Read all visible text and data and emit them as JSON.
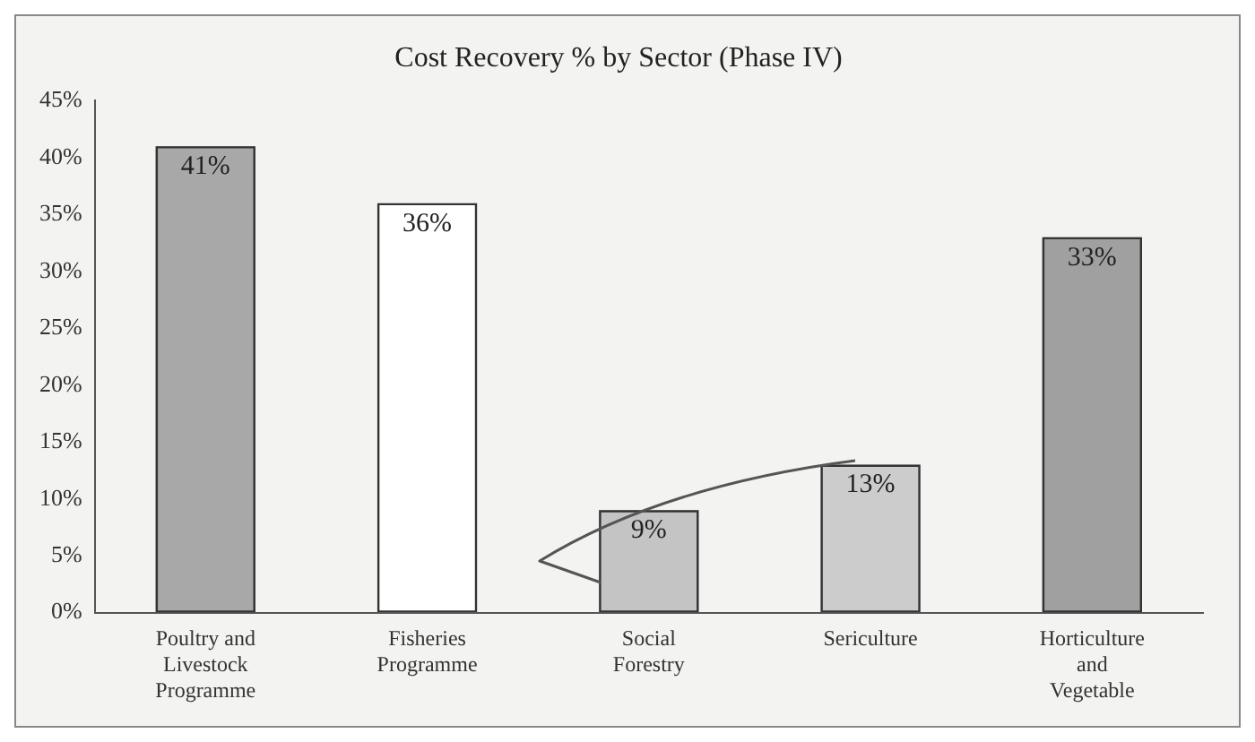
{
  "chart_data": {
    "type": "bar",
    "title": "Cost Recovery % by Sector (Phase IV)",
    "categories": [
      "Poultry and Livestock Programme",
      "Fisheries Programme",
      "Social Forestry",
      "Sericulture",
      "Horticulture and Vegetable"
    ],
    "values": [
      41,
      36,
      9,
      13,
      33
    ],
    "colors": [
      "#a8a8a8",
      "#ffffff",
      "#c4c4c4",
      "#cccccc",
      "#a0a0a0"
    ],
    "value_labels": [
      "41%",
      "36%",
      "9%",
      "13%",
      "33%"
    ],
    "ylim": [
      0,
      45
    ],
    "yticks": [
      {
        "value": 0,
        "label": "0%"
      },
      {
        "value": 5,
        "label": "5%"
      },
      {
        "value": 10,
        "label": "10%"
      },
      {
        "value": 15,
        "label": "15%"
      },
      {
        "value": 20,
        "label": "20%"
      },
      {
        "value": 25,
        "label": "25%"
      },
      {
        "value": 30,
        "label": "30%"
      },
      {
        "value": 35,
        "label": "35%"
      },
      {
        "value": 40,
        "label": "40%"
      },
      {
        "value": 45,
        "label": "45%"
      }
    ],
    "grid": false,
    "legend": false
  }
}
